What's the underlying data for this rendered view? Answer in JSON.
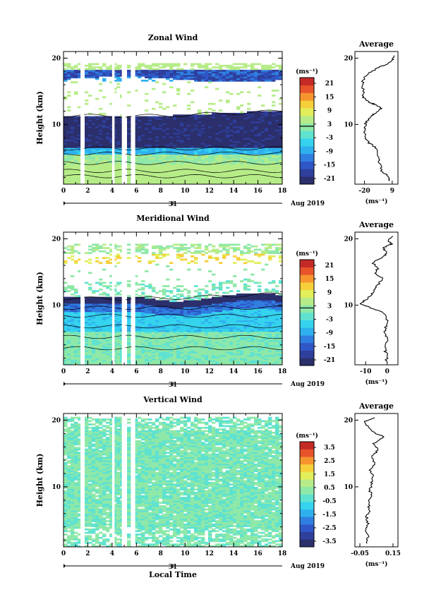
{
  "figure": {
    "date_label": "Aug 2019",
    "day_label": "31"
  },
  "panels": [
    {
      "id": "zonal",
      "title": "Zonal Wind",
      "ylabel": "Height (km)",
      "unit": "(ms⁻¹)",
      "x_ticks": [
        "0",
        "2",
        "4",
        "6",
        "8",
        "10",
        "12",
        "14",
        "16",
        "18"
      ],
      "y_ticks": [
        "20",
        "10"
      ],
      "xlabel": "",
      "colorbar": {
        "labels": [
          "21",
          "15",
          "9",
          "3",
          "-3",
          "-9",
          "-15",
          "-21"
        ],
        "marker_value": "3"
      },
      "average": {
        "title": "Average",
        "x_ticks": [
          "-20",
          "9"
        ],
        "y_ticks": [
          "20",
          "10"
        ],
        "unit": "(ms⁻¹)",
        "xlim": [
          -30,
          15
        ],
        "profile": [
          [
            6,
            1.5
          ],
          [
            5,
            2.2
          ],
          [
            -2,
            3.0
          ],
          [
            -4,
            4.2
          ],
          [
            -6,
            5.5
          ],
          [
            -8,
            6.5
          ],
          [
            -15,
            7.2
          ],
          [
            -19,
            8.0
          ],
          [
            -20,
            9.0
          ],
          [
            -19,
            10.0
          ],
          [
            -17,
            10.6
          ],
          [
            -14,
            11.2
          ],
          [
            -10,
            11.6
          ],
          [
            -2,
            12.4
          ],
          [
            -9,
            13.0
          ],
          [
            -16,
            13.4
          ],
          [
            -22,
            14.2
          ],
          [
            -21,
            15.2
          ],
          [
            -22,
            16.0
          ],
          [
            -21,
            17.0
          ],
          [
            -15,
            17.8
          ],
          [
            -5,
            18.6
          ],
          [
            5,
            19.2
          ],
          [
            9,
            19.8
          ],
          [
            13,
            20.5
          ]
        ]
      }
    },
    {
      "id": "meridional",
      "title": "Meridional Wind",
      "ylabel": "Height (km)",
      "unit": "(ms⁻¹)",
      "x_ticks": [
        "0",
        "2",
        "4",
        "6",
        "8",
        "10",
        "12",
        "14",
        "16",
        "18"
      ],
      "y_ticks": [
        "20",
        "10"
      ],
      "xlabel": "",
      "colorbar": {
        "labels": [
          "21",
          "15",
          "9",
          "3",
          "-3",
          "-9",
          "-15",
          "-21"
        ],
        "marker_value": "3"
      },
      "average": {
        "title": "Average",
        "x_ticks": [
          "-10",
          "0"
        ],
        "y_ticks": [
          "20",
          "10"
        ],
        "unit": "(ms⁻¹)",
        "xlim": [
          -15,
          5
        ],
        "profile": [
          [
            -1,
            1.5
          ],
          [
            0.5,
            2.2
          ],
          [
            -1,
            3.0
          ],
          [
            -0.5,
            4.0
          ],
          [
            0,
            5.0
          ],
          [
            -1,
            6.0
          ],
          [
            -0.5,
            7.0
          ],
          [
            0,
            8.0
          ],
          [
            -2,
            9.0
          ],
          [
            -8,
            9.6
          ],
          [
            -12,
            10.2
          ],
          [
            -10,
            10.8
          ],
          [
            -7,
            11.6
          ],
          [
            -6,
            12.4
          ],
          [
            -4,
            13.2
          ],
          [
            -2,
            14.0
          ],
          [
            -6,
            14.8
          ],
          [
            -4,
            15.6
          ],
          [
            -7,
            16.4
          ],
          [
            -3,
            17.0
          ],
          [
            0,
            17.8
          ],
          [
            -2,
            18.6
          ],
          [
            2,
            19.2
          ],
          [
            0,
            19.8
          ],
          [
            3,
            20.5
          ]
        ]
      }
    },
    {
      "id": "vertical",
      "title": "Vertical Wind",
      "ylabel": "Height (km)",
      "unit": "(ms⁻¹)",
      "x_ticks": [
        "0",
        "2",
        "4",
        "6",
        "8",
        "10",
        "12",
        "14",
        "16",
        "18"
      ],
      "y_ticks": [
        "20",
        "10"
      ],
      "xlabel": "Local Time",
      "colorbar": {
        "labels": [
          "3.5",
          "2.5",
          "1.5",
          "0.5",
          "-0.5",
          "-1.5",
          "-2.5",
          "-3.5"
        ],
        "marker_value": ""
      },
      "average": {
        "title": "Average",
        "x_ticks": [
          "-0.05",
          "0.15"
        ],
        "y_ticks": [
          "20",
          "10"
        ],
        "unit": "(ms⁻¹)",
        "xlim": [
          -0.08,
          0.18
        ],
        "profile": [
          [
            -0.01,
            1.5
          ],
          [
            0.0,
            2.5
          ],
          [
            -0.02,
            3.5
          ],
          [
            0.0,
            4.5
          ],
          [
            -0.01,
            5.5
          ],
          [
            0.01,
            6.5
          ],
          [
            0.0,
            7.5
          ],
          [
            0.02,
            8.5
          ],
          [
            0.01,
            9.5
          ],
          [
            0.02,
            10.5
          ],
          [
            0.03,
            11.5
          ],
          [
            0.01,
            12.5
          ],
          [
            0.04,
            13.5
          ],
          [
            0.02,
            14.5
          ],
          [
            0.06,
            15.5
          ],
          [
            0.03,
            16.5
          ],
          [
            0.1,
            17.5
          ],
          [
            0.04,
            18.0
          ],
          [
            0.0,
            19.0
          ],
          [
            -0.02,
            19.8
          ],
          [
            0.05,
            20.5
          ]
        ]
      }
    }
  ],
  "chart_data": [
    {
      "type": "heatmap",
      "title": "Zonal Wind",
      "xlabel": "",
      "ylabel": "Height (km)",
      "xlim": [
        0,
        18
      ],
      "ylim": [
        1,
        21
      ],
      "colorbar_range": [
        -21,
        21
      ],
      "description_layers": [
        {
          "z_range": [
            1,
            5.2
          ],
          "value": 6
        },
        {
          "z_range": [
            5.2,
            6.5
          ],
          "value": -3
        },
        {
          "z_range": [
            6.5,
            11.5
          ],
          "value": -20
        },
        {
          "z_range": [
            11.5,
            16.5
          ],
          "value": 0
        },
        {
          "z_range": [
            16.5,
            18.0
          ],
          "value": -15
        },
        {
          "z_range": [
            18.0,
            19.0
          ],
          "value": 3
        }
      ]
    },
    {
      "type": "heatmap",
      "title": "Meridional Wind",
      "xlabel": "",
      "ylabel": "Height (km)",
      "xlim": [
        0,
        18
      ],
      "ylim": [
        1,
        21
      ],
      "colorbar_range": [
        -21,
        21
      ],
      "description_layers": [
        {
          "z_range": [
            1,
            5
          ],
          "value": -2
        },
        {
          "z_range": [
            5,
            8
          ],
          "value": -4
        },
        {
          "z_range": [
            8,
            10
          ],
          "value": -9
        },
        {
          "z_range": [
            10,
            11.3
          ],
          "value": -18
        },
        {
          "z_range": [
            11.3,
            14
          ],
          "value": -3
        },
        {
          "z_range": [
            16,
            18.5
          ],
          "value": 3
        }
      ]
    },
    {
      "type": "heatmap",
      "title": "Vertical Wind",
      "xlabel": "Local Time",
      "ylabel": "Height (km)",
      "xlim": [
        0,
        18
      ],
      "ylim": [
        1,
        21
      ],
      "colorbar_range": [
        -3.5,
        3.5
      ],
      "description_layers": [
        {
          "z_range": [
            1,
            21
          ],
          "value": 0.1
        }
      ]
    }
  ]
}
